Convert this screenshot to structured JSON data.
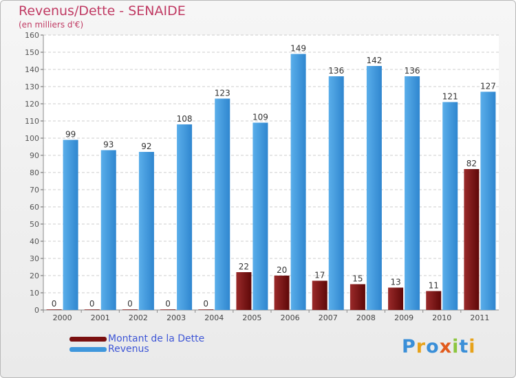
{
  "chart_data": {
    "type": "bar",
    "title": "Revenus/Dette - SENAIDE",
    "subtitle": "(en milliers d'€)",
    "categories": [
      "2000",
      "2001",
      "2002",
      "2003",
      "2004",
      "2005",
      "2006",
      "2007",
      "2008",
      "2009",
      "2010",
      "2011"
    ],
    "series": [
      {
        "name": "Montant de la Dette",
        "color": "#7a1010",
        "values": [
          0,
          0,
          0,
          0,
          0,
          22,
          20,
          17,
          15,
          13,
          11,
          82
        ]
      },
      {
        "name": "Revenus",
        "color": "#3f97dc",
        "values": [
          99,
          93,
          92,
          108,
          123,
          109,
          149,
          136,
          142,
          136,
          121,
          127
        ]
      }
    ],
    "ylim": [
      0,
      160
    ],
    "yticks": [
      0,
      10,
      20,
      30,
      40,
      50,
      60,
      70,
      80,
      90,
      100,
      110,
      120,
      130,
      140,
      150,
      160
    ],
    "grid": true,
    "legend": "bottom-left"
  },
  "logo": {
    "letters": [
      "P",
      "r",
      "o",
      "x",
      "i",
      "t",
      "i"
    ],
    "colors": [
      "#3a8fd8",
      "#e7a21a",
      "#3a8fd8",
      "#e25a1c",
      "#8cc63e",
      "#3a8fd8",
      "#e7a21a"
    ]
  }
}
